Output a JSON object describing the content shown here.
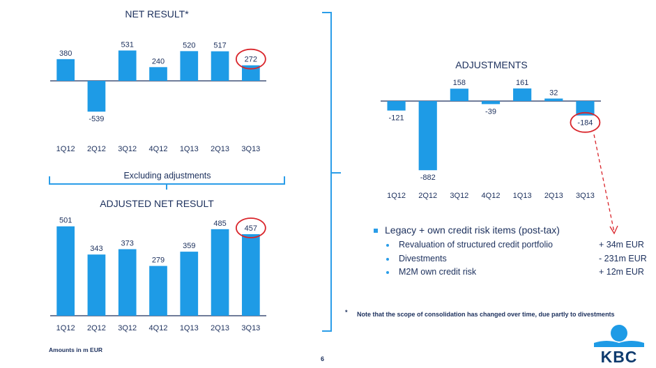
{
  "colors": {
    "bar": "#1e9be6",
    "axis": "#1b2f5c",
    "label": "#1b2f5c",
    "highlight": "#d9242a",
    "bracket": "#2a9de8",
    "kbc_light": "#1e9be6",
    "kbc_dark": "#0e3b6e"
  },
  "chart_data": [
    {
      "id": "net_result",
      "type": "bar",
      "title": "NET RESULT*",
      "categories": [
        "1Q12",
        "2Q12",
        "3Q12",
        "4Q12",
        "1Q13",
        "2Q13",
        "3Q13"
      ],
      "values": [
        380,
        -539,
        531,
        240,
        520,
        517,
        272
      ],
      "data_labels": [
        "380",
        "-539",
        "531",
        "240",
        "520",
        "517",
        "272"
      ],
      "highlighted_category": "3Q13",
      "xlabel": "",
      "ylabel": "",
      "grid": false,
      "legend": "none"
    },
    {
      "id": "adjusted_net_result",
      "type": "bar",
      "title": "ADJUSTED NET RESULT",
      "categories": [
        "1Q12",
        "2Q12",
        "3Q12",
        "4Q12",
        "1Q13",
        "2Q13",
        "3Q13"
      ],
      "values": [
        501,
        343,
        373,
        279,
        359,
        485,
        457
      ],
      "data_labels": [
        "501",
        "343",
        "373",
        "279",
        "359",
        "485",
        "457"
      ],
      "highlighted_category": "3Q13",
      "xlabel": "",
      "ylabel": "",
      "grid": false,
      "legend": "none"
    },
    {
      "id": "adjustments",
      "type": "bar",
      "title": "ADJUSTMENTS",
      "categories": [
        "1Q12",
        "2Q12",
        "3Q12",
        "4Q12",
        "1Q13",
        "2Q13",
        "3Q13"
      ],
      "values": [
        -121,
        -882,
        158,
        -39,
        161,
        32,
        -184
      ],
      "data_labels": [
        "-121",
        "-882",
        "158",
        "-39",
        "161",
        "32",
        "-184"
      ],
      "highlighted_category": "3Q13",
      "xlabel": "",
      "ylabel": "",
      "grid": false,
      "legend": "none"
    }
  ],
  "bracket_label": "Excluding adjustments",
  "details": {
    "heading": "Legacy + own credit risk items (post-tax)",
    "items": [
      {
        "label": "Revaluation of structured credit portfolio",
        "value": "+ 34m EUR"
      },
      {
        "label": "Divestments",
        "value": "- 231m EUR"
      },
      {
        "label": "M2M own credit risk",
        "value": "+ 12m EUR"
      }
    ]
  },
  "footnote": {
    "marker": "*",
    "text": "Note that the scope of consolidation has changed over time, due partly to divestments"
  },
  "amounts_note": "Amounts in m EUR",
  "page_number": "6",
  "logo": {
    "text": "KBC"
  }
}
